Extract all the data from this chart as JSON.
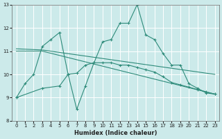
{
  "bg_color": "#cceaea",
  "grid_color": "#ffffff",
  "line_color": "#2e8b7a",
  "xlabel": "Humidex (Indice chaleur)",
  "ylim": [
    8,
    13
  ],
  "xlim": [
    -0.5,
    23.5
  ],
  "yticks": [
    8,
    9,
    10,
    11,
    12,
    13
  ],
  "xticks": [
    0,
    1,
    2,
    3,
    4,
    5,
    6,
    7,
    8,
    9,
    10,
    11,
    12,
    13,
    14,
    15,
    16,
    17,
    18,
    19,
    20,
    21,
    22,
    23
  ],
  "line1_x": [
    0,
    1,
    2,
    3,
    4,
    5,
    6,
    7,
    8,
    9,
    10,
    11,
    12,
    13,
    14,
    15,
    16,
    17,
    18,
    19,
    20,
    21,
    22,
    23
  ],
  "line1_y": [
    9.0,
    9.6,
    10.0,
    11.2,
    11.5,
    11.8,
    10.0,
    8.5,
    9.5,
    10.5,
    11.4,
    11.5,
    12.2,
    12.2,
    13.0,
    11.7,
    11.5,
    10.9,
    10.4,
    10.4,
    9.6,
    9.4,
    9.2,
    9.15
  ],
  "line2_x": [
    0,
    3,
    23
  ],
  "line2_y": [
    11.1,
    11.05,
    10.0
  ],
  "line3_x": [
    0,
    3,
    5,
    6,
    7,
    8,
    9,
    10,
    11,
    12,
    13,
    14,
    15,
    16,
    17,
    18,
    19,
    20,
    21,
    22,
    23
  ],
  "line3_y": [
    9.0,
    9.4,
    9.5,
    10.0,
    10.05,
    10.4,
    10.5,
    10.5,
    10.5,
    10.4,
    10.4,
    10.3,
    10.2,
    10.1,
    9.9,
    9.65,
    9.55,
    9.45,
    9.35,
    9.25,
    9.15
  ],
  "line4_x": [
    0,
    3,
    23
  ],
  "line4_y": [
    11.0,
    11.0,
    9.15
  ]
}
